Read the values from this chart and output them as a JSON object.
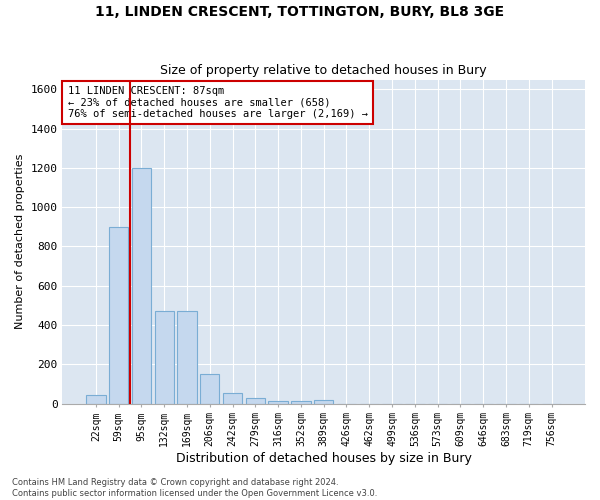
{
  "title1": "11, LINDEN CRESCENT, TOTTINGTON, BURY, BL8 3GE",
  "title2": "Size of property relative to detached houses in Bury",
  "xlabel": "Distribution of detached houses by size in Bury",
  "ylabel": "Number of detached properties",
  "categories": [
    "22sqm",
    "59sqm",
    "95sqm",
    "132sqm",
    "169sqm",
    "206sqm",
    "242sqm",
    "279sqm",
    "316sqm",
    "352sqm",
    "389sqm",
    "426sqm",
    "462sqm",
    "499sqm",
    "536sqm",
    "573sqm",
    "609sqm",
    "646sqm",
    "683sqm",
    "719sqm",
    "756sqm"
  ],
  "values": [
    45,
    900,
    1200,
    470,
    470,
    150,
    55,
    30,
    15,
    15,
    20,
    0,
    0,
    0,
    0,
    0,
    0,
    0,
    0,
    0,
    0
  ],
  "bar_color": "#c5d8ee",
  "bar_edge_color": "#7aadd4",
  "vline_color": "#cc0000",
  "annotation_text": "11 LINDEN CRESCENT: 87sqm\n← 23% of detached houses are smaller (658)\n76% of semi-detached houses are larger (2,169) →",
  "annotation_box_color": "#ffffff",
  "annotation_box_edge": "#cc0000",
  "ylim": [
    0,
    1650
  ],
  "yticks": [
    0,
    200,
    400,
    600,
    800,
    1000,
    1200,
    1400,
    1600
  ],
  "footer1": "Contains HM Land Registry data © Crown copyright and database right 2024.",
  "footer2": "Contains public sector information licensed under the Open Government Licence v3.0.",
  "fig_bg_color": "#ffffff",
  "plot_bg_color": "#dce6f1",
  "grid_color": "#ffffff",
  "vline_x_index": 1.5
}
